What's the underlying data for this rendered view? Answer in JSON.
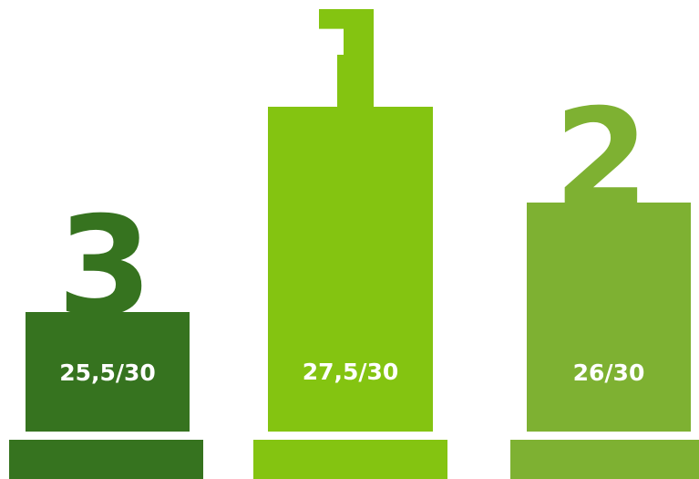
{
  "podium": [
    {
      "rank": "3",
      "score": "25,5/30",
      "color": "#36731f"
    },
    {
      "rank": "1",
      "score": "27,5/30",
      "color": "#84c411"
    },
    {
      "rank": "2",
      "score": "26/30",
      "color": "#7eb132"
    }
  ]
}
